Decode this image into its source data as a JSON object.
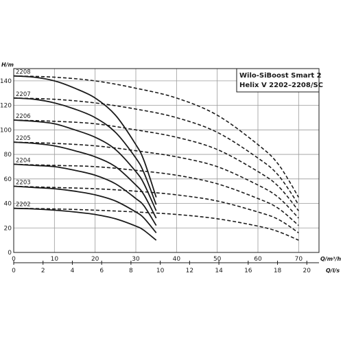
{
  "chart_data": {
    "type": "line",
    "title_lines": [
      "Wilo-SiBoost Smart 2",
      "Helix V 2202–2208/SC"
    ],
    "y_axis": {
      "label": "H/m",
      "ticks": [
        0,
        20,
        40,
        60,
        80,
        100,
        120,
        140
      ],
      "range": [
        0,
        150
      ]
    },
    "x_axis_flow_m3h": {
      "label": "Q/m³/h",
      "ticks": [
        0,
        10,
        20,
        30,
        40,
        50,
        60,
        70
      ],
      "range": [
        0,
        75
      ]
    },
    "x_axis_flow_ls": {
      "label": "Q/l/s",
      "ticks": [
        0,
        2,
        4,
        6,
        8,
        10,
        12,
        14,
        16,
        18,
        20
      ],
      "range": [
        0,
        20.83
      ]
    },
    "grid": true,
    "series": [
      {
        "name": "2208",
        "single_pump_solid": [
          [
            0,
            144
          ],
          [
            5,
            143
          ],
          [
            10,
            140
          ],
          [
            15,
            134
          ],
          [
            20,
            126
          ],
          [
            25,
            112
          ],
          [
            30,
            88
          ],
          [
            32,
            75
          ],
          [
            35,
            45
          ]
        ],
        "two_pumps_dashed": [
          [
            0,
            144
          ],
          [
            10,
            143
          ],
          [
            20,
            140
          ],
          [
            30,
            134
          ],
          [
            40,
            126
          ],
          [
            50,
            112
          ],
          [
            60,
            88
          ],
          [
            65,
            72
          ],
          [
            70,
            45
          ]
        ]
      },
      {
        "name": "2207",
        "single_pump_solid": [
          [
            0,
            126
          ],
          [
            5,
            125
          ],
          [
            10,
            122
          ],
          [
            15,
            117
          ],
          [
            20,
            110
          ],
          [
            25,
            98
          ],
          [
            30,
            77
          ],
          [
            32,
            65
          ],
          [
            35,
            39
          ]
        ],
        "two_pumps_dashed": [
          [
            0,
            126
          ],
          [
            10,
            125
          ],
          [
            20,
            122
          ],
          [
            30,
            117
          ],
          [
            40,
            110
          ],
          [
            50,
            98
          ],
          [
            60,
            77
          ],
          [
            65,
            63
          ],
          [
            70,
            39
          ]
        ]
      },
      {
        "name": "2206",
        "single_pump_solid": [
          [
            0,
            108
          ],
          [
            5,
            107
          ],
          [
            10,
            105
          ],
          [
            15,
            100
          ],
          [
            20,
            94
          ],
          [
            25,
            84
          ],
          [
            30,
            66
          ],
          [
            32,
            56
          ],
          [
            35,
            34
          ]
        ],
        "two_pumps_dashed": [
          [
            0,
            108
          ],
          [
            10,
            107
          ],
          [
            20,
            105
          ],
          [
            30,
            100
          ],
          [
            40,
            94
          ],
          [
            50,
            84
          ],
          [
            60,
            66
          ],
          [
            65,
            54
          ],
          [
            70,
            34
          ]
        ]
      },
      {
        "name": "2205",
        "single_pump_solid": [
          [
            0,
            90
          ],
          [
            5,
            89
          ],
          [
            10,
            87
          ],
          [
            15,
            83
          ],
          [
            20,
            78
          ],
          [
            25,
            70
          ],
          [
            30,
            55
          ],
          [
            32,
            47
          ],
          [
            35,
            28
          ]
        ],
        "two_pumps_dashed": [
          [
            0,
            90
          ],
          [
            10,
            89
          ],
          [
            20,
            87
          ],
          [
            30,
            83
          ],
          [
            40,
            78
          ],
          [
            50,
            70
          ],
          [
            60,
            55
          ],
          [
            65,
            45
          ],
          [
            70,
            28
          ]
        ]
      },
      {
        "name": "2204",
        "single_pump_solid": [
          [
            0,
            72
          ],
          [
            5,
            71
          ],
          [
            10,
            70
          ],
          [
            15,
            67
          ],
          [
            20,
            63
          ],
          [
            25,
            56
          ],
          [
            30,
            44
          ],
          [
            32,
            38
          ],
          [
            35,
            22
          ]
        ],
        "two_pumps_dashed": [
          [
            0,
            72
          ],
          [
            10,
            71
          ],
          [
            20,
            70
          ],
          [
            30,
            67
          ],
          [
            40,
            63
          ],
          [
            50,
            56
          ],
          [
            60,
            44
          ],
          [
            65,
            36
          ],
          [
            70,
            22
          ]
        ]
      },
      {
        "name": "2203",
        "single_pump_solid": [
          [
            0,
            54
          ],
          [
            5,
            53
          ],
          [
            10,
            52
          ],
          [
            15,
            50
          ],
          [
            20,
            47
          ],
          [
            25,
            42
          ],
          [
            30,
            33
          ],
          [
            32,
            28
          ],
          [
            35,
            16
          ]
        ],
        "two_pumps_dashed": [
          [
            0,
            54
          ],
          [
            10,
            53
          ],
          [
            20,
            52
          ],
          [
            30,
            50
          ],
          [
            40,
            47
          ],
          [
            50,
            42
          ],
          [
            60,
            33
          ],
          [
            65,
            27
          ],
          [
            70,
            16
          ]
        ]
      },
      {
        "name": "2202",
        "single_pump_solid": [
          [
            0,
            36
          ],
          [
            5,
            35.5
          ],
          [
            10,
            34.5
          ],
          [
            15,
            33
          ],
          [
            20,
            31
          ],
          [
            25,
            27.5
          ],
          [
            30,
            21.5
          ],
          [
            32,
            18
          ],
          [
            35,
            10
          ]
        ],
        "two_pumps_dashed": [
          [
            0,
            36
          ],
          [
            10,
            35.5
          ],
          [
            20,
            34.5
          ],
          [
            30,
            33
          ],
          [
            40,
            31
          ],
          [
            50,
            27.5
          ],
          [
            60,
            21.5
          ],
          [
            65,
            17
          ],
          [
            70,
            10
          ]
        ]
      }
    ]
  },
  "colors": {
    "curve": "#1a1a1a",
    "grid": "#9a9a9a",
    "axis": "#1a1a1a",
    "background": "#ffffff"
  }
}
